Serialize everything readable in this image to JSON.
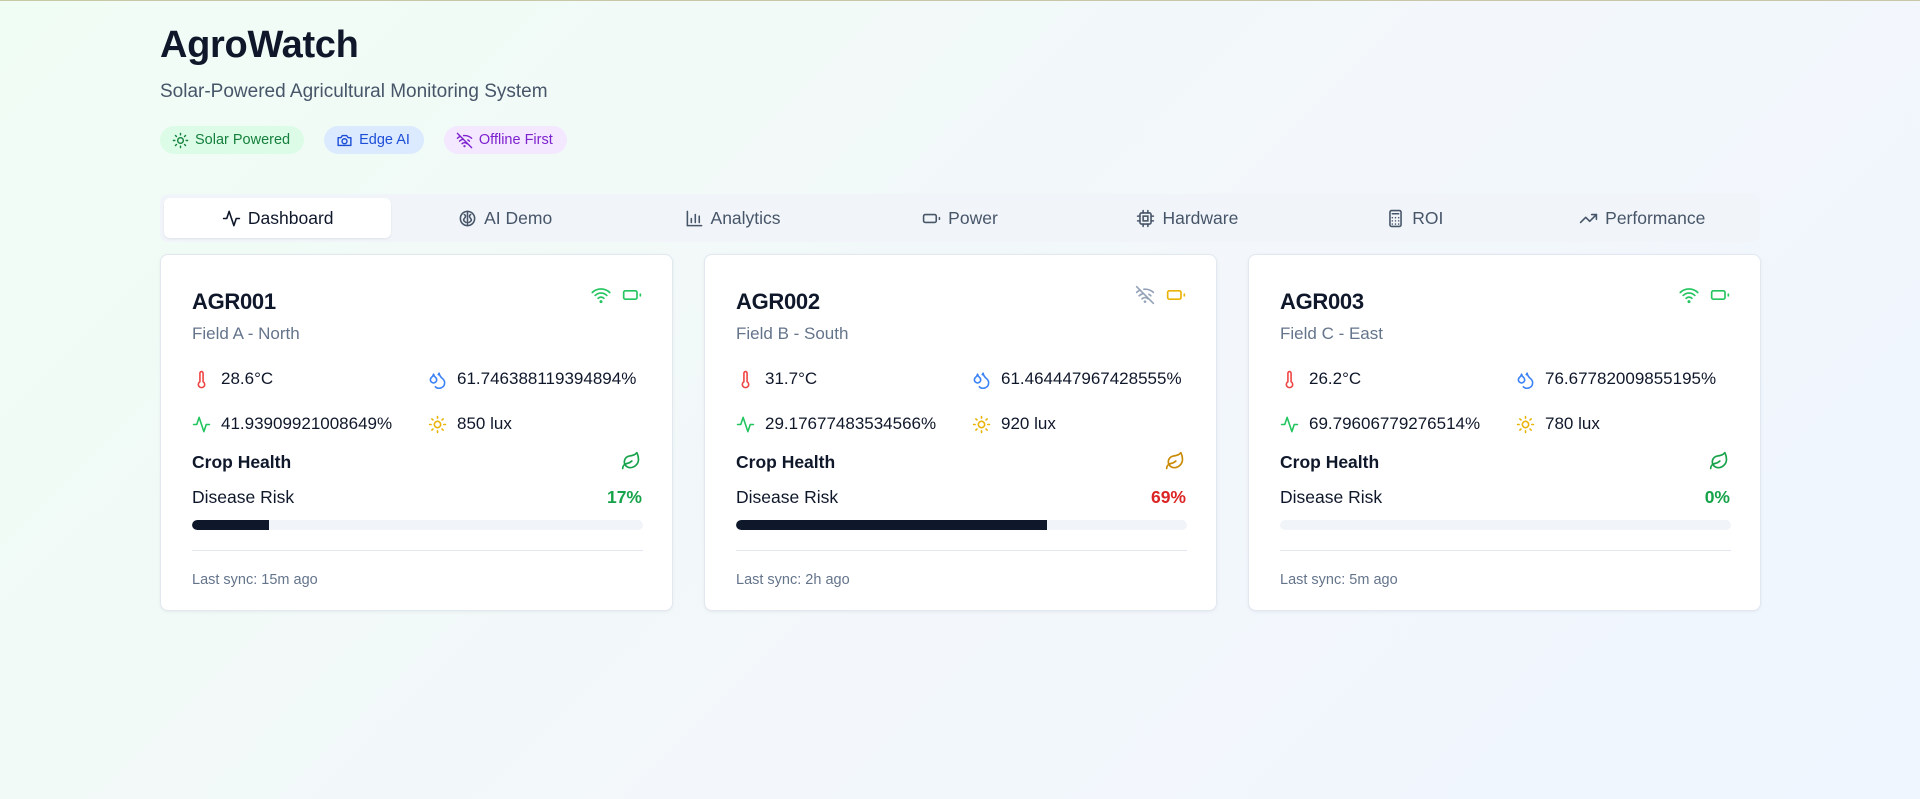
{
  "header": {
    "title": "AgroWatch",
    "subtitle": "Solar-Powered Agricultural Monitoring System"
  },
  "badges": [
    {
      "label": "Solar Powered",
      "icon": "sun-icon",
      "color": "#15803d"
    },
    {
      "label": "Edge AI",
      "icon": "camera-icon",
      "color": "#1d4ed8"
    },
    {
      "label": "Offline First",
      "icon": "wifi-off-icon",
      "color": "#7e22ce"
    }
  ],
  "tabs": [
    {
      "label": "Dashboard",
      "icon": "activity-icon",
      "active": true
    },
    {
      "label": "AI Demo",
      "icon": "brain-icon"
    },
    {
      "label": "Analytics",
      "icon": "bar-chart-icon"
    },
    {
      "label": "Power",
      "icon": "battery-icon"
    },
    {
      "label": "Hardware",
      "icon": "cpu-icon"
    },
    {
      "label": "ROI",
      "icon": "calculator-icon"
    },
    {
      "label": "Performance",
      "icon": "trending-up-icon"
    }
  ],
  "labels": {
    "crop_health": "Crop Health",
    "disease_risk": "Disease Risk"
  },
  "colors": {
    "online": "#22c55e",
    "offline": "#94a3b8",
    "battery_good": "#22c55e",
    "battery_low": "#eab308",
    "risk_low": "#16a34a",
    "risk_high": "#dc2626",
    "temperature": "#ef4444",
    "humidity": "#3b82f6",
    "soil": "#22c55e",
    "light": "#eab308"
  },
  "devices": [
    {
      "id": "AGR001",
      "location": "Field A - North",
      "wifi": "online",
      "battery": "good",
      "temperature": "28.6°C",
      "humidity": "61.746388119394894%",
      "soil_moisture": "41.93909921008649%",
      "light": "850 lux",
      "crop_health": "healthy",
      "disease_risk": "17%",
      "disease_risk_value": 17,
      "risk_level": "low",
      "last_sync": "Last sync: 15m ago"
    },
    {
      "id": "AGR002",
      "location": "Field B - South",
      "wifi": "offline",
      "battery": "low",
      "temperature": "31.7°C",
      "humidity": "61.464447967428555%",
      "soil_moisture": "29.17677483534566%",
      "light": "920 lux",
      "crop_health": "warning",
      "disease_risk": "69%",
      "disease_risk_value": 69,
      "risk_level": "high",
      "last_sync": "Last sync: 2h ago"
    },
    {
      "id": "AGR003",
      "location": "Field C - East",
      "wifi": "online",
      "battery": "good",
      "temperature": "26.2°C",
      "humidity": "76.67782009855195%",
      "soil_moisture": "69.79606779276514%",
      "light": "780 lux",
      "crop_health": "healthy",
      "disease_risk": "0%",
      "disease_risk_value": 0,
      "risk_level": "low",
      "last_sync": "Last sync: 5m ago"
    }
  ]
}
